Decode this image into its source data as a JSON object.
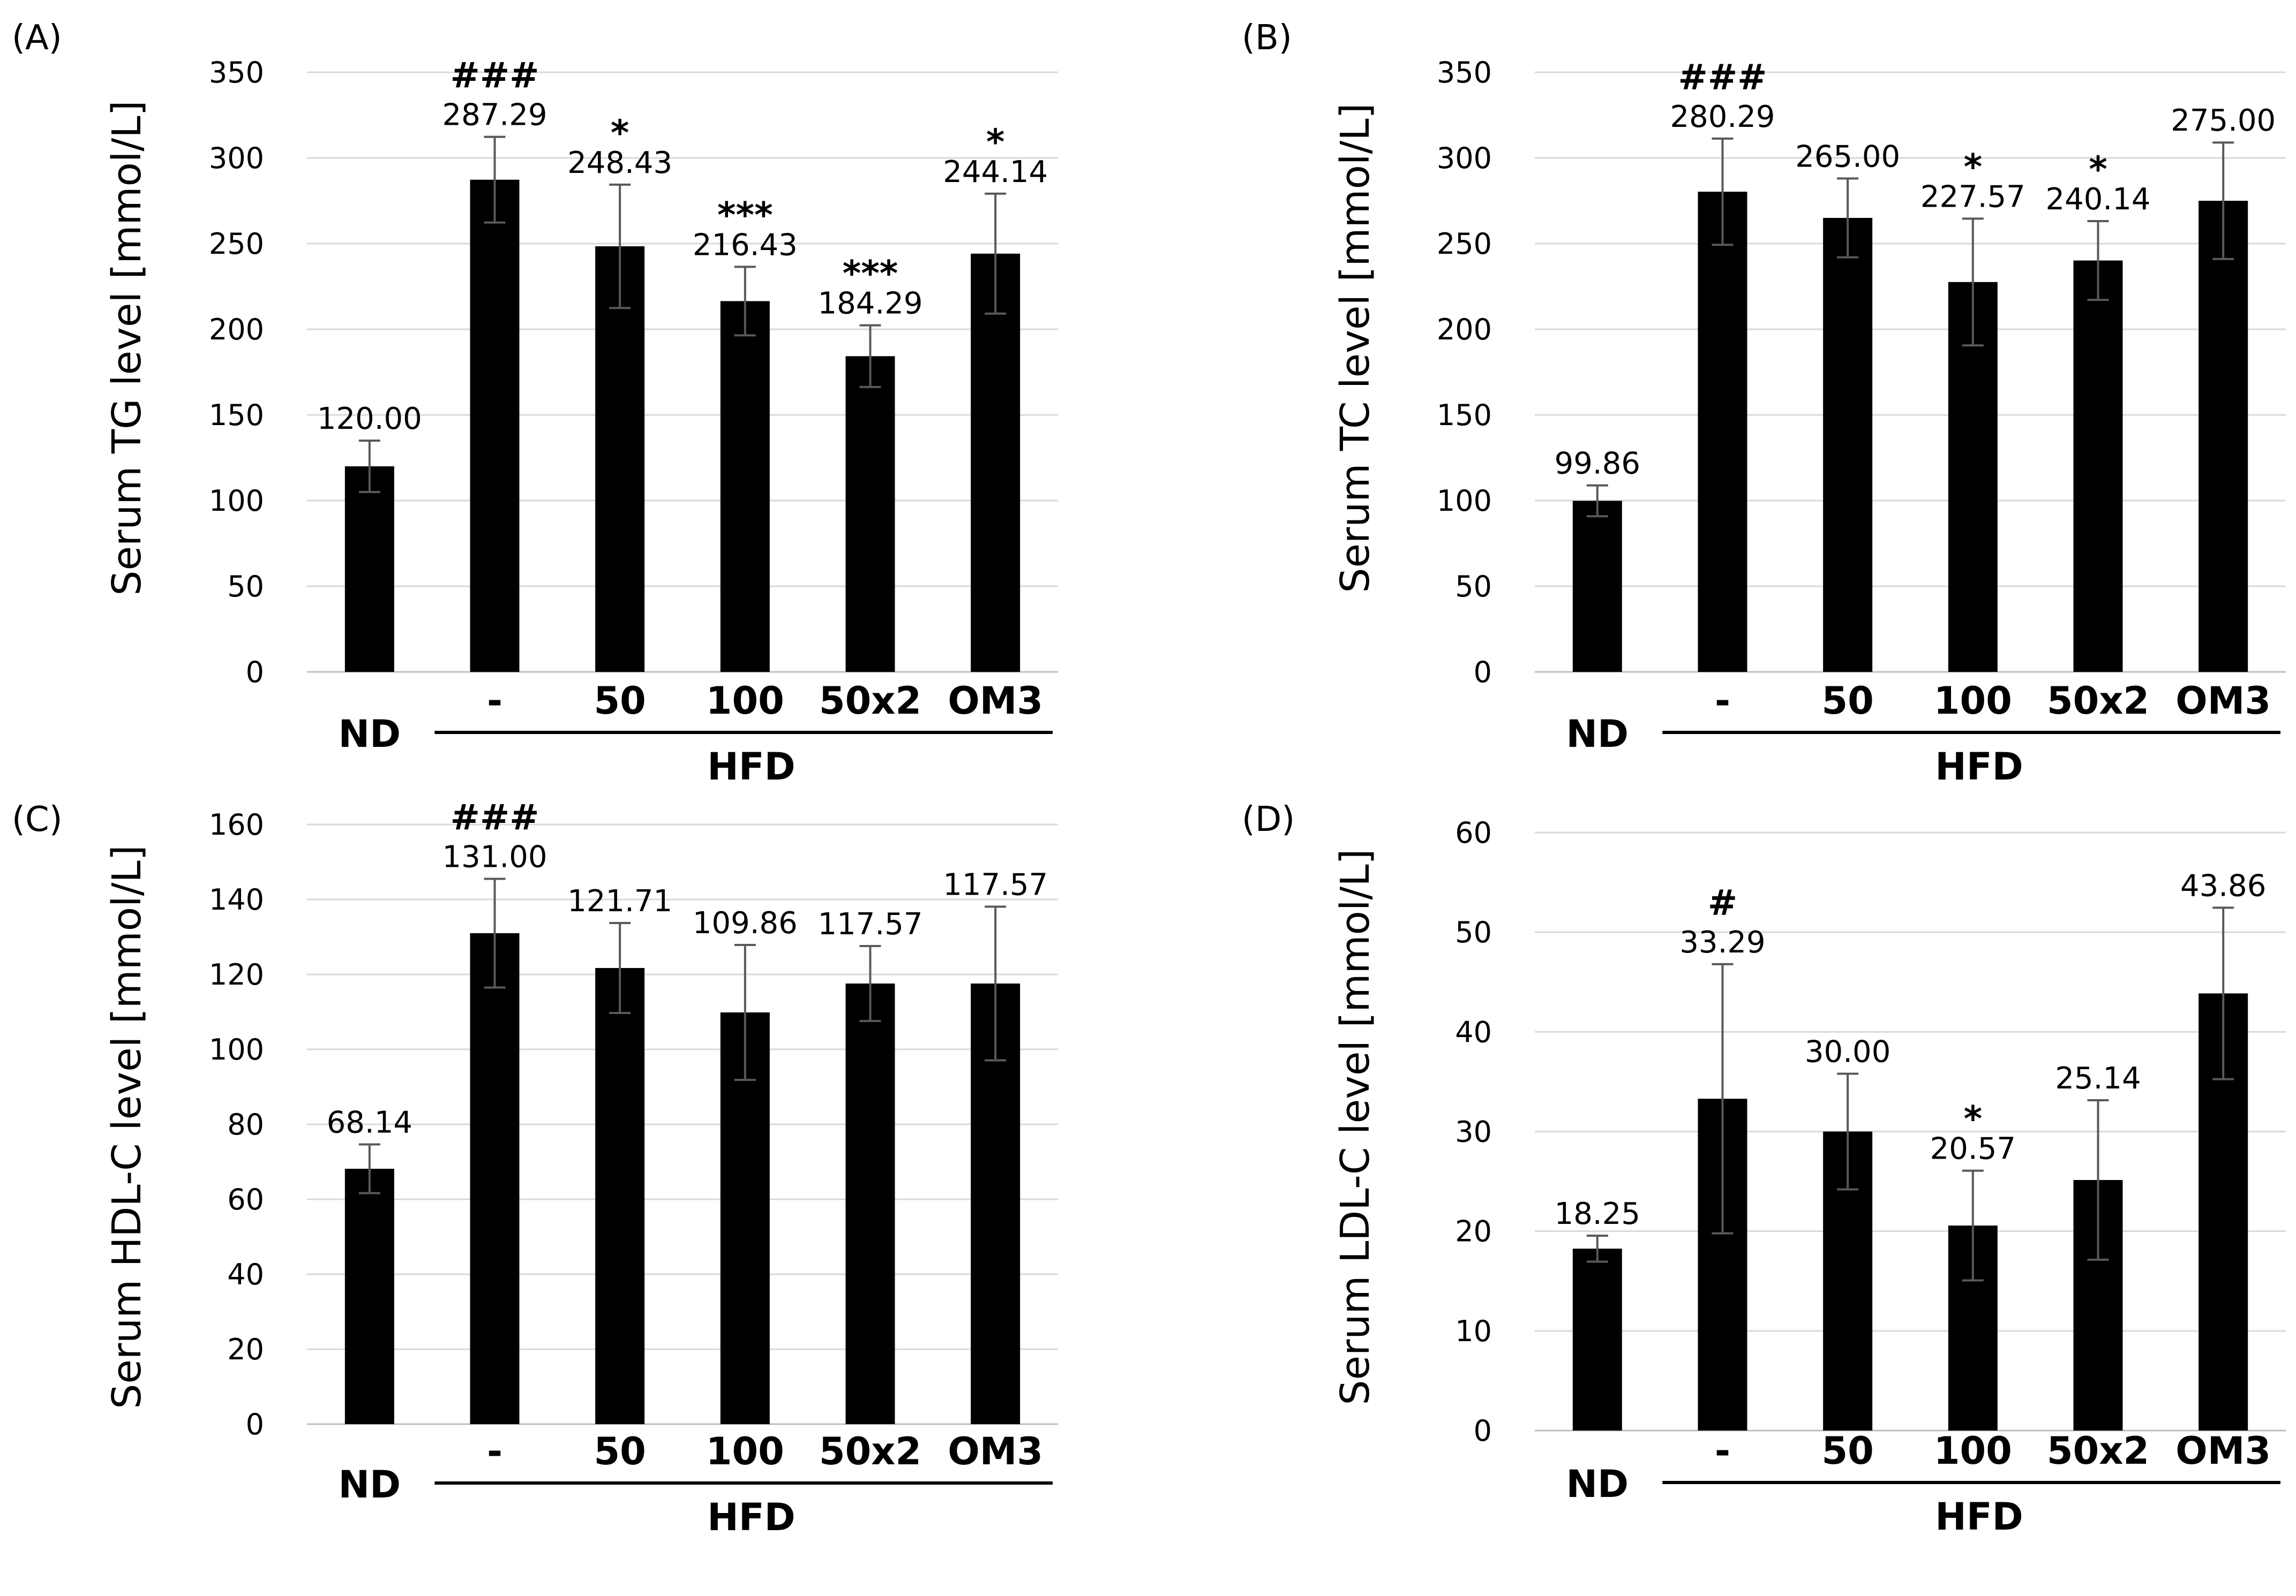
{
  "chart_data": [
    {
      "panel": "(A)",
      "type": "bar",
      "ylabel": "Serum TG level [mmol/L]",
      "ylim": [
        0,
        350
      ],
      "yticks": [
        0,
        50,
        100,
        150,
        200,
        250,
        300,
        350
      ],
      "grid": true,
      "categories": [
        "ND",
        "-",
        "50",
        "100",
        "50x2",
        "OM3"
      ],
      "group_label": "HFD",
      "values": [
        120.0,
        287.29,
        248.43,
        216.43,
        184.29,
        244.14
      ],
      "value_labels": [
        "120.00",
        "287.29",
        "248.43",
        "216.43",
        "184.29",
        "244.14"
      ],
      "errors": [
        15,
        25,
        36,
        20,
        18,
        35
      ],
      "significance": [
        "",
        "###",
        "*",
        "***",
        "***",
        "*"
      ]
    },
    {
      "panel": "(B)",
      "type": "bar",
      "ylabel": "Serum TC level [mmol/L]",
      "ylim": [
        0,
        350
      ],
      "yticks": [
        0,
        50,
        100,
        150,
        200,
        250,
        300,
        350
      ],
      "grid": true,
      "categories": [
        "ND",
        "-",
        "50",
        "100",
        "50x2",
        "OM3"
      ],
      "group_label": "HFD",
      "values": [
        99.86,
        280.29,
        265.0,
        227.57,
        240.14,
        275.0
      ],
      "value_labels": [
        "99.86",
        "280.29",
        "265.00",
        "227.57",
        "240.14",
        "275.00"
      ],
      "errors": [
        9,
        31,
        23,
        37,
        23,
        34
      ],
      "significance": [
        "",
        "###",
        "",
        "*",
        "*",
        ""
      ]
    },
    {
      "panel": "(C)",
      "type": "bar",
      "ylabel": "Serum HDL-C level [mmol/L]",
      "ylim": [
        0,
        160
      ],
      "yticks": [
        0,
        20,
        40,
        60,
        80,
        100,
        120,
        140,
        160
      ],
      "grid": true,
      "categories": [
        "ND",
        "-",
        "50",
        "100",
        "50x2",
        "OM3"
      ],
      "group_label": "HFD",
      "values": [
        68.14,
        131.0,
        121.71,
        109.86,
        117.57,
        117.57
      ],
      "value_labels": [
        "68.14",
        "131.00",
        "121.71",
        "109.86",
        "117.57",
        "117.57"
      ],
      "errors": [
        6.5,
        14.5,
        12,
        18,
        10,
        20.5
      ],
      "significance": [
        "",
        "###",
        "",
        "",
        "",
        ""
      ]
    },
    {
      "panel": "(D)",
      "type": "bar",
      "ylabel": "Serum LDL-C level [mmol/L]",
      "ylim": [
        0,
        60
      ],
      "yticks": [
        0,
        10,
        20,
        30,
        40,
        50,
        60
      ],
      "grid": true,
      "categories": [
        "ND",
        "-",
        "50",
        "100",
        "50x2",
        "OM3"
      ],
      "group_label": "HFD",
      "values": [
        18.25,
        33.29,
        30.0,
        20.57,
        25.14,
        43.86
      ],
      "value_labels": [
        "18.25",
        "33.29",
        "30.00",
        "20.57",
        "25.14",
        "43.86"
      ],
      "errors": [
        1.3,
        13.5,
        5.8,
        5.5,
        8,
        8.6
      ],
      "significance": [
        "",
        "#",
        "",
        "*",
        "",
        ""
      ]
    }
  ]
}
